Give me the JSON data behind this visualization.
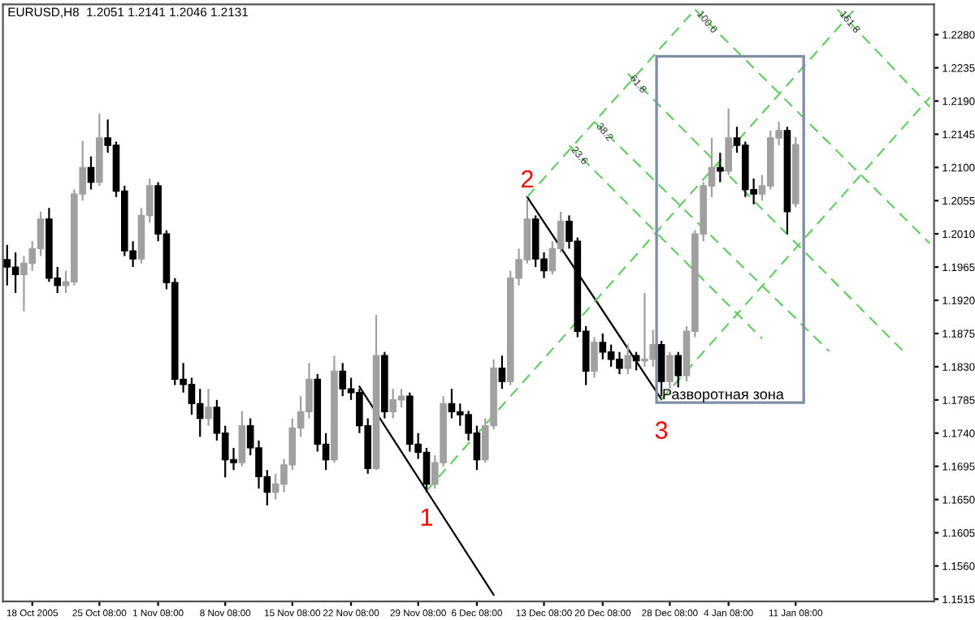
{
  "chart_data": {
    "type": "candlestick",
    "title": "EURUSD,H8  1.2051 1.2141 1.2046 1.2131",
    "categories": [
      null,
      null,
      null,
      "18 Oct 2005",
      null,
      null,
      null,
      null,
      null,
      null,
      null,
      "25 Oct 08:00",
      null,
      null,
      null,
      null,
      null,
      null,
      "1 Nov 08:00",
      null,
      null,
      null,
      null,
      null,
      null,
      null,
      "8 Nov 08:00",
      null,
      null,
      null,
      null,
      null,
      null,
      null,
      "15 Nov 08:00",
      null,
      null,
      null,
      null,
      null,
      null,
      "22 Nov 08:00",
      null,
      null,
      null,
      null,
      null,
      null,
      null,
      "29 Nov 08:00",
      null,
      null,
      null,
      null,
      null,
      null,
      "6 Dec 08:00",
      null,
      null,
      null,
      null,
      null,
      null,
      null,
      "13 Dec 08:00",
      null,
      null,
      null,
      null,
      null,
      null,
      "20 Dec 08:00",
      null,
      null,
      null,
      null,
      null,
      null,
      null,
      "28 Dec 08:00",
      null,
      null,
      null,
      null,
      null,
      null,
      "4 Jan 08:00",
      null,
      null,
      null,
      null,
      null,
      null,
      null,
      "11 Jan 08:00",
      null,
      null,
      null,
      null,
      null,
      null,
      null,
      null,
      null,
      null,
      null,
      null,
      null,
      null,
      null,
      null
    ],
    "ohlc": [
      [
        1.1975,
        1.1995,
        1.194,
        1.1965
      ],
      [
        1.1965,
        1.1985,
        1.193,
        1.1955
      ],
      [
        1.1955,
        1.198,
        1.1905,
        1.197
      ],
      [
        1.197,
        1.2,
        1.196,
        1.199
      ],
      [
        1.199,
        1.204,
        1.198,
        1.203
      ],
      [
        1.203,
        1.2045,
        1.1945,
        1.195
      ],
      [
        1.195,
        1.1965,
        1.193,
        1.194
      ],
      [
        1.194,
        1.196,
        1.193,
        1.1945
      ],
      [
        1.1945,
        1.207,
        1.194,
        1.2064
      ],
      [
        1.2064,
        1.2136,
        1.2055,
        1.21
      ],
      [
        1.21,
        1.2115,
        1.207,
        1.208
      ],
      [
        1.208,
        1.2173,
        1.2075,
        1.214
      ],
      [
        1.214,
        1.2165,
        1.212,
        1.213
      ],
      [
        1.213,
        1.2135,
        1.206,
        1.2068
      ],
      [
        1.2068,
        1.2075,
        1.198,
        1.1987
      ],
      [
        1.1987,
        1.2,
        1.1965,
        1.1976
      ],
      [
        1.1976,
        1.2045,
        1.197,
        1.2035
      ],
      [
        1.2035,
        1.2085,
        1.2025,
        1.2075
      ],
      [
        1.2075,
        1.208,
        1.2,
        1.201
      ],
      [
        1.201,
        1.2015,
        1.1935,
        1.1944
      ],
      [
        1.1944,
        1.195,
        1.1805,
        1.1813
      ],
      [
        1.1813,
        1.1835,
        1.1795,
        1.1806
      ],
      [
        1.1806,
        1.1815,
        1.1765,
        1.178
      ],
      [
        1.178,
        1.18,
        1.1735,
        1.176
      ],
      [
        1.176,
        1.18,
        1.175,
        1.1775
      ],
      [
        1.1775,
        1.1785,
        1.173,
        1.174
      ],
      [
        1.174,
        1.175,
        1.168,
        1.1704
      ],
      [
        1.1704,
        1.172,
        1.169,
        1.17
      ],
      [
        1.17,
        1.177,
        1.1695,
        1.175
      ],
      [
        1.175,
        1.176,
        1.171,
        1.172
      ],
      [
        1.172,
        1.173,
        1.1665,
        1.1681
      ],
      [
        1.1681,
        1.169,
        1.1642,
        1.166
      ],
      [
        1.166,
        1.1685,
        1.165,
        1.1671
      ],
      [
        1.1671,
        1.1705,
        1.166,
        1.1697
      ],
      [
        1.1697,
        1.176,
        1.169,
        1.1747
      ],
      [
        1.1747,
        1.179,
        1.1735,
        1.1769
      ],
      [
        1.1769,
        1.1835,
        1.176,
        1.1813
      ],
      [
        1.1813,
        1.182,
        1.1715,
        1.1725
      ],
      [
        1.1725,
        1.174,
        1.169,
        1.1704
      ],
      [
        1.1704,
        1.1845,
        1.17,
        1.1824
      ],
      [
        1.1824,
        1.1835,
        1.179,
        1.18
      ],
      [
        1.18,
        1.1815,
        1.1785,
        1.1795
      ],
      [
        1.1795,
        1.18,
        1.174,
        1.175
      ],
      [
        1.175,
        1.176,
        1.1685,
        1.1692
      ],
      [
        1.1692,
        1.19,
        1.169,
        1.1845
      ],
      [
        1.1845,
        1.185,
        1.176,
        1.1769
      ],
      [
        1.1769,
        1.18,
        1.176,
        1.1785
      ],
      [
        1.1785,
        1.18,
        1.1775,
        1.179
      ],
      [
        1.179,
        1.1795,
        1.1715,
        1.1725
      ],
      [
        1.1725,
        1.174,
        1.1705,
        1.1714
      ],
      [
        1.1714,
        1.172,
        1.166,
        1.1671
      ],
      [
        1.1671,
        1.171,
        1.1665,
        1.17
      ],
      [
        1.17,
        1.179,
        1.1695,
        1.178
      ],
      [
        1.178,
        1.18,
        1.176,
        1.1769
      ],
      [
        1.1769,
        1.178,
        1.175,
        1.1765
      ],
      [
        1.1765,
        1.177,
        1.173,
        1.174
      ],
      [
        1.174,
        1.175,
        1.169,
        1.1704
      ],
      [
        1.1704,
        1.176,
        1.17,
        1.175
      ],
      [
        1.175,
        1.184,
        1.1745,
        1.1828
      ],
      [
        1.1828,
        1.1845,
        1.18,
        1.181
      ],
      [
        1.181,
        1.196,
        1.1805,
        1.195
      ],
      [
        1.195,
        1.199,
        1.194,
        1.1975
      ],
      [
        1.1975,
        1.2057,
        1.197,
        1.203
      ],
      [
        1.203,
        1.2035,
        1.1965,
        1.1976
      ],
      [
        1.1976,
        1.1985,
        1.195,
        1.196
      ],
      [
        1.196,
        1.2,
        1.1955,
        1.199
      ],
      [
        1.199,
        1.204,
        1.1985,
        1.2027
      ],
      [
        1.2027,
        1.2035,
        1.199,
        1.2
      ],
      [
        1.2,
        1.2005,
        1.187,
        1.1878
      ],
      [
        1.1878,
        1.1885,
        1.1805,
        1.1824
      ],
      [
        1.1824,
        1.187,
        1.1815,
        1.1863
      ],
      [
        1.1863,
        1.1875,
        1.184,
        1.185
      ],
      [
        1.185,
        1.186,
        1.183,
        1.184
      ],
      [
        1.184,
        1.185,
        1.182,
        1.1828
      ],
      [
        1.1828,
        1.186,
        1.182,
        1.1845
      ],
      [
        1.1845,
        1.185,
        1.1825,
        1.1838
      ],
      [
        1.1838,
        1.193,
        1.183,
        1.184
      ],
      [
        1.184,
        1.188,
        1.183,
        1.186
      ],
      [
        1.186,
        1.1865,
        1.179,
        1.181
      ],
      [
        1.181,
        1.185,
        1.18,
        1.1845
      ],
      [
        1.1845,
        1.185,
        1.1802,
        1.1818
      ],
      [
        1.1818,
        1.1885,
        1.181,
        1.1878
      ],
      [
        1.1878,
        1.2015,
        1.187,
        1.201
      ],
      [
        1.201,
        1.208,
        1.2,
        1.2075
      ],
      [
        1.2075,
        1.214,
        1.206,
        1.21
      ],
      [
        1.21,
        1.212,
        1.208,
        1.2095
      ],
      [
        1.2095,
        1.218,
        1.209,
        1.214
      ],
      [
        1.214,
        1.2155,
        1.212,
        1.213
      ],
      [
        1.213,
        1.2135,
        1.206,
        1.207
      ],
      [
        1.207,
        1.2085,
        1.205,
        1.2064
      ],
      [
        1.2064,
        1.209,
        1.2055,
        1.2075
      ],
      [
        1.2075,
        1.215,
        1.207,
        1.214
      ],
      [
        1.214,
        1.2162,
        1.213,
        1.215
      ],
      [
        1.215,
        1.2155,
        1.201,
        1.204
      ],
      [
        1.2051,
        1.2141,
        1.2046,
        1.2131
      ],
      null,
      null,
      null,
      null,
      null,
      null,
      null,
      null,
      null,
      null,
      null,
      null,
      null,
      null,
      null,
      null
    ],
    "colors": [
      "#000000",
      "#000000",
      "#a0a0a0",
      "#a0a0a0",
      "#a0a0a0",
      "#000000",
      "#000000",
      "#a0a0a0",
      "#a0a0a0",
      "#a0a0a0",
      "#000000",
      "#a0a0a0",
      "#000000",
      "#000000",
      "#000000",
      "#000000",
      "#a0a0a0",
      "#a0a0a0",
      "#000000",
      "#000000",
      "#000000",
      "#000000",
      "#000000",
      "#000000",
      "#a0a0a0",
      "#000000",
      "#000000",
      "#000000",
      "#a0a0a0",
      "#000000",
      "#000000",
      "#000000",
      "#a0a0a0",
      "#a0a0a0",
      "#a0a0a0",
      "#a0a0a0",
      "#a0a0a0",
      "#000000",
      "#000000",
      "#a0a0a0",
      "#000000",
      "#000000",
      "#000000",
      "#000000",
      "#a0a0a0",
      "#000000",
      "#a0a0a0",
      "#a0a0a0",
      "#000000",
      "#000000",
      "#000000",
      "#a0a0a0",
      "#a0a0a0",
      "#000000",
      "#000000",
      "#000000",
      "#000000",
      "#a0a0a0",
      "#a0a0a0",
      "#000000",
      "#a0a0a0",
      "#a0a0a0",
      "#a0a0a0",
      "#000000",
      "#000000",
      "#a0a0a0",
      "#a0a0a0",
      "#000000",
      "#000000",
      "#000000",
      "#a0a0a0",
      "#000000",
      "#000000",
      "#000000",
      "#a0a0a0",
      "#000000",
      "#a0a0a0",
      "#a0a0a0",
      "#000000",
      "#a0a0a0",
      "#000000",
      "#a0a0a0",
      "#a0a0a0",
      "#a0a0a0",
      "#a0a0a0",
      "#000000",
      "#a0a0a0",
      "#000000",
      "#000000",
      "#000000",
      "#a0a0a0",
      "#a0a0a0",
      "#a0a0a0",
      "#000000",
      "#a0a0a0",
      null,
      null,
      null,
      null,
      null,
      null,
      null,
      null,
      null,
      null,
      null,
      null,
      null,
      null,
      null,
      null
    ],
    "series": [
      {
        "type": "line",
        "color": "#000000",
        "line_style": "solid",
        "values": [
          null,
          null,
          null,
          null,
          null,
          null,
          null,
          null,
          null,
          null,
          null,
          null,
          null,
          null,
          null,
          null,
          null,
          null,
          null,
          null,
          null,
          null,
          null,
          null,
          null,
          null,
          null,
          null,
          null,
          null,
          null,
          null,
          null,
          null,
          null,
          null,
          null,
          null,
          null,
          null,
          null,
          null,
          1.1803,
          null,
          null,
          null,
          null,
          null,
          null,
          null,
          null,
          null,
          null,
          null,
          null,
          null,
          null,
          null,
          1.1521,
          null,
          null,
          null,
          null,
          null,
          null,
          null,
          null,
          null,
          null,
          null,
          null,
          null,
          null,
          null,
          null,
          null,
          null,
          null,
          null,
          null,
          null,
          null,
          null,
          null,
          null,
          null,
          null,
          null,
          null,
          null,
          null,
          null,
          null,
          null,
          null,
          null,
          null,
          null,
          null,
          null,
          null,
          null,
          null,
          null,
          null,
          null,
          null,
          null,
          null,
          null,
          null
        ]
      },
      {
        "type": "line",
        "color": "#000000",
        "line_style": "solid",
        "values": [
          null,
          null,
          null,
          null,
          null,
          null,
          null,
          null,
          null,
          null,
          null,
          null,
          null,
          null,
          null,
          null,
          null,
          null,
          null,
          null,
          null,
          null,
          null,
          null,
          null,
          null,
          null,
          null,
          null,
          null,
          null,
          null,
          null,
          null,
          null,
          null,
          null,
          null,
          null,
          null,
          null,
          null,
          null,
          null,
          null,
          null,
          null,
          null,
          null,
          null,
          null,
          null,
          null,
          null,
          null,
          null,
          null,
          null,
          null,
          null,
          null,
          null,
          1.206,
          null,
          null,
          null,
          null,
          null,
          null,
          null,
          null,
          null,
          null,
          null,
          null,
          null,
          null,
          null,
          1.1786,
          null,
          null,
          null,
          null,
          null,
          null,
          null,
          null,
          null,
          null,
          null,
          null,
          null,
          null,
          null,
          null,
          null,
          null,
          null,
          null,
          null,
          null,
          null,
          null,
          null,
          null,
          null,
          null,
          null,
          null,
          null,
          null
        ]
      },
      {
        "type": "line",
        "color": "#66cc66",
        "line_style": "dashed",
        "values": [
          null,
          null,
          null,
          null,
          null,
          null,
          null,
          null,
          null,
          null,
          null,
          null,
          null,
          null,
          null,
          null,
          null,
          null,
          null,
          null,
          null,
          null,
          null,
          null,
          null,
          null,
          null,
          null,
          null,
          null,
          null,
          null,
          null,
          null,
          null,
          null,
          null,
          null,
          null,
          null,
          null,
          null,
          null,
          null,
          null,
          null,
          null,
          null,
          null,
          null,
          1.1662,
          null,
          null,
          null,
          null,
          null,
          null,
          null,
          null,
          null,
          null,
          null,
          null,
          null,
          null,
          null,
          null,
          null,
          null,
          null,
          null,
          null,
          null,
          null,
          null,
          null,
          null,
          null,
          null,
          null,
          null,
          null,
          null,
          null,
          null,
          null,
          null,
          null,
          null,
          null,
          null,
          null,
          null,
          null,
          null,
          null,
          null,
          null,
          null,
          null,
          null,
          1.2314,
          null,
          null,
          null,
          null,
          null,
          null,
          null,
          null,
          null
        ]
      },
      {
        "type": "line",
        "color": "#66cc66",
        "line_style": "dashed",
        "values": [
          null,
          null,
          null,
          null,
          null,
          null,
          null,
          null,
          null,
          null,
          null,
          null,
          null,
          null,
          null,
          null,
          null,
          null,
          null,
          null,
          null,
          null,
          null,
          null,
          null,
          null,
          null,
          null,
          null,
          null,
          null,
          null,
          null,
          null,
          null,
          null,
          null,
          null,
          null,
          null,
          null,
          null,
          null,
          null,
          null,
          null,
          null,
          null,
          null,
          null,
          null,
          null,
          null,
          null,
          null,
          null,
          null,
          null,
          null,
          null,
          null,
          null,
          1.206,
          null,
          null,
          null,
          null,
          null,
          null,
          null,
          null,
          null,
          null,
          null,
          null,
          null,
          null,
          null,
          null,
          null,
          null,
          null,
          1.2314,
          null,
          null,
          null,
          null,
          null,
          null,
          null,
          null,
          null,
          null,
          null,
          null,
          null,
          null,
          null,
          null,
          null,
          null,
          null,
          null,
          null,
          null,
          null,
          null,
          null,
          null,
          null,
          null
        ]
      },
      {
        "type": "line",
        "color": "#66cc66",
        "line_style": "dashed",
        "values": [
          null,
          null,
          null,
          null,
          null,
          null,
          null,
          null,
          null,
          null,
          null,
          null,
          null,
          null,
          null,
          null,
          null,
          null,
          null,
          null,
          null,
          null,
          null,
          null,
          null,
          null,
          null,
          null,
          null,
          null,
          null,
          null,
          null,
          null,
          null,
          null,
          null,
          null,
          null,
          null,
          null,
          null,
          null,
          null,
          null,
          null,
          null,
          null,
          null,
          null,
          null,
          null,
          null,
          null,
          null,
          null,
          null,
          null,
          null,
          null,
          null,
          null,
          null,
          null,
          null,
          null,
          null,
          null,
          null,
          null,
          null,
          null,
          null,
          null,
          null,
          null,
          null,
          null,
          1.1786,
          null,
          null,
          null,
          null,
          null,
          null,
          null,
          null,
          null,
          null,
          null,
          null,
          null,
          null,
          null,
          null,
          null,
          null,
          null,
          null,
          null,
          null,
          null,
          null,
          null,
          null,
          null,
          null,
          null,
          null,
          null,
          1.2195
        ]
      },
      {
        "type": "line",
        "name": "23.6",
        "color": "#66cc66",
        "line_style": "dashed",
        "values": [
          null,
          null,
          null,
          null,
          null,
          null,
          null,
          null,
          null,
          null,
          null,
          null,
          null,
          null,
          null,
          null,
          null,
          null,
          null,
          null,
          null,
          null,
          null,
          null,
          null,
          null,
          null,
          null,
          null,
          null,
          null,
          null,
          null,
          null,
          null,
          null,
          null,
          null,
          null,
          null,
          null,
          null,
          null,
          null,
          null,
          null,
          null,
          null,
          null,
          null,
          null,
          null,
          null,
          null,
          null,
          null,
          null,
          null,
          null,
          null,
          null,
          null,
          null,
          null,
          null,
          null,
          null,
          1.213,
          null,
          null,
          null,
          null,
          null,
          null,
          null,
          null,
          null,
          null,
          null,
          null,
          null,
          null,
          null,
          null,
          null,
          null,
          null,
          null,
          null,
          null,
          1.1868,
          null,
          null,
          null,
          null,
          null,
          null,
          null,
          null,
          null,
          null,
          null,
          null,
          null,
          null,
          null,
          null,
          null,
          null,
          null,
          null
        ]
      },
      {
        "type": "line",
        "name": "38.2",
        "color": "#66cc66",
        "line_style": "dashed",
        "values": [
          null,
          null,
          null,
          null,
          null,
          null,
          null,
          null,
          null,
          null,
          null,
          null,
          null,
          null,
          null,
          null,
          null,
          null,
          null,
          null,
          null,
          null,
          null,
          null,
          null,
          null,
          null,
          null,
          null,
          null,
          null,
          null,
          null,
          null,
          null,
          null,
          null,
          null,
          null,
          null,
          null,
          null,
          null,
          null,
          null,
          null,
          null,
          null,
          null,
          null,
          null,
          null,
          null,
          null,
          null,
          null,
          null,
          null,
          null,
          null,
          null,
          null,
          null,
          null,
          null,
          null,
          null,
          null,
          null,
          null,
          1.2162,
          null,
          null,
          null,
          null,
          null,
          null,
          null,
          null,
          null,
          null,
          null,
          null,
          null,
          null,
          null,
          null,
          null,
          null,
          null,
          null,
          null,
          null,
          null,
          null,
          null,
          null,
          null,
          1.1851,
          null,
          null,
          null,
          null,
          null,
          null,
          null,
          null,
          null,
          null,
          null,
          null
        ]
      },
      {
        "type": "line",
        "name": "61.8",
        "color": "#66cc66",
        "line_style": "dashed",
        "values": [
          null,
          null,
          null,
          null,
          null,
          null,
          null,
          null,
          null,
          null,
          null,
          null,
          null,
          null,
          null,
          null,
          null,
          null,
          null,
          null,
          null,
          null,
          null,
          null,
          null,
          null,
          null,
          null,
          null,
          null,
          null,
          null,
          null,
          null,
          null,
          null,
          null,
          null,
          null,
          null,
          null,
          null,
          null,
          null,
          null,
          null,
          null,
          null,
          null,
          null,
          null,
          null,
          null,
          null,
          null,
          null,
          null,
          null,
          null,
          null,
          null,
          null,
          null,
          null,
          null,
          null,
          null,
          null,
          null,
          null,
          null,
          null,
          null,
          null,
          1.2227,
          null,
          null,
          null,
          null,
          null,
          null,
          null,
          null,
          null,
          null,
          null,
          null,
          null,
          null,
          null,
          null,
          null,
          null,
          null,
          null,
          null,
          null,
          null,
          null,
          null,
          null,
          null,
          null,
          null,
          null,
          null,
          null,
          1.1849,
          null,
          null,
          null
        ]
      },
      {
        "type": "line",
        "name": "100.0",
        "color": "#66cc66",
        "line_style": "dashed",
        "values": [
          null,
          null,
          null,
          null,
          null,
          null,
          null,
          null,
          null,
          null,
          null,
          null,
          null,
          null,
          null,
          null,
          null,
          null,
          null,
          null,
          null,
          null,
          null,
          null,
          null,
          null,
          null,
          null,
          null,
          null,
          null,
          null,
          null,
          null,
          null,
          null,
          null,
          null,
          null,
          null,
          null,
          null,
          null,
          null,
          null,
          null,
          null,
          null,
          null,
          null,
          null,
          null,
          null,
          null,
          null,
          null,
          null,
          null,
          null,
          null,
          null,
          null,
          null,
          null,
          null,
          null,
          null,
          null,
          null,
          null,
          null,
          null,
          null,
          null,
          null,
          null,
          null,
          null,
          null,
          null,
          null,
          null,
          1.2314,
          null,
          null,
          null,
          null,
          null,
          null,
          null,
          null,
          null,
          null,
          null,
          null,
          null,
          null,
          null,
          null,
          null,
          null,
          null,
          null,
          null,
          null,
          null,
          null,
          null,
          null,
          null,
          1.1997
        ]
      },
      {
        "type": "line",
        "name": "161.8",
        "color": "#66cc66",
        "line_style": "dashed",
        "values": [
          null,
          null,
          null,
          null,
          null,
          null,
          null,
          null,
          null,
          null,
          null,
          null,
          null,
          null,
          null,
          null,
          null,
          null,
          null,
          null,
          null,
          null,
          null,
          null,
          null,
          null,
          null,
          null,
          null,
          null,
          null,
          null,
          null,
          null,
          null,
          null,
          null,
          null,
          null,
          null,
          null,
          null,
          null,
          null,
          null,
          null,
          null,
          null,
          null,
          null,
          null,
          null,
          null,
          null,
          null,
          null,
          null,
          null,
          null,
          null,
          null,
          null,
          null,
          null,
          null,
          null,
          null,
          null,
          null,
          null,
          null,
          null,
          null,
          null,
          null,
          null,
          null,
          null,
          null,
          null,
          null,
          null,
          null,
          null,
          null,
          null,
          null,
          null,
          null,
          null,
          null,
          null,
          null,
          null,
          null,
          null,
          null,
          null,
          null,
          1.2314,
          null,
          null,
          null,
          null,
          null,
          null,
          null,
          null,
          null,
          null,
          1.2182
        ]
      }
    ],
    "annotations": [
      {
        "text": "1",
        "y": 1.166
      },
      {
        "text": "2",
        "y": 1.2057
      },
      {
        "text": "3",
        "y": 1.179
      },
      "Разворотная зона"
    ],
    "ylim": [
      1.1512,
      1.2321
    ],
    "yticks": [
      {
        "value": 1.228,
        "label": "1.2280"
      },
      {
        "value": 1.2235,
        "label": "1.2235"
      },
      {
        "value": 1.219,
        "label": "1.2190"
      },
      {
        "value": 1.2145,
        "label": "1.2145"
      },
      {
        "value": 1.21,
        "label": "1.2100"
      },
      {
        "value": 1.2055,
        "label": "1.2055"
      },
      {
        "value": 1.201,
        "label": "1.2010"
      },
      {
        "value": 1.1965,
        "label": "1.1965"
      },
      {
        "value": 1.192,
        "label": "1.1920"
      },
      {
        "value": 1.1875,
        "label": "1.1875"
      },
      {
        "value": 1.183,
        "label": "1.1830"
      },
      {
        "value": 1.1785,
        "label": "1.1785"
      },
      {
        "value": 1.174,
        "label": "1.1740"
      },
      {
        "value": 1.1695,
        "label": "1.1695"
      },
      {
        "value": 1.165,
        "label": "1.1650"
      },
      {
        "value": 1.1605,
        "label": "1.1605"
      },
      {
        "value": 1.156,
        "label": "1.1560"
      },
      {
        "value": 1.1515,
        "label": "1.1515"
      }
    ],
    "grid": false,
    "legend": false
  }
}
